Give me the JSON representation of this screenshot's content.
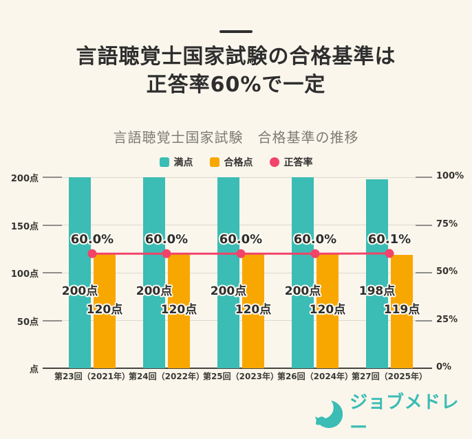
{
  "page": {
    "background": "#faf6ec"
  },
  "header": {
    "title_line1": "言語聴覚士国家試験の合格基準は",
    "title_line2": "正答率60%で一定"
  },
  "chart_data": {
    "type": "bar",
    "title": "言語聴覚士国家試験　合格基準の推移",
    "categories": [
      "第23回（2021年）",
      "第24回（2022年）",
      "第25回（2023年）",
      "第26回（2024年）",
      "第27回（2025年）"
    ],
    "series": [
      {
        "name": "満点",
        "type": "bar",
        "color": "#3bbcb4",
        "values": [
          200,
          200,
          200,
          200,
          198
        ],
        "labels": [
          "200点",
          "200点",
          "200点",
          "200点",
          "198点"
        ]
      },
      {
        "name": "合格点",
        "type": "bar",
        "color": "#f8a700",
        "values": [
          120,
          120,
          120,
          120,
          119
        ],
        "labels": [
          "120点",
          "120点",
          "120点",
          "120点",
          "119点"
        ]
      },
      {
        "name": "正答率",
        "type": "line",
        "color": "#f2436a",
        "values": [
          60.0,
          60.0,
          60.0,
          60.0,
          60.1
        ],
        "labels": [
          "60.0%",
          "60.0%",
          "60.0%",
          "60.0%",
          "60.1%"
        ]
      }
    ],
    "left_axis": {
      "ticks": [
        "200点",
        "150点",
        "100点",
        "50点",
        "点"
      ],
      "min": 0,
      "max": 200
    },
    "right_axis": {
      "ticks": [
        "100%",
        "75%",
        "50%",
        "25%",
        "0%"
      ],
      "min": 0,
      "max": 100
    },
    "grid": true,
    "legend_position": "top"
  },
  "footer": {
    "logo_text": "ジョブメドレー",
    "logo_color": "#3bbcb4"
  }
}
